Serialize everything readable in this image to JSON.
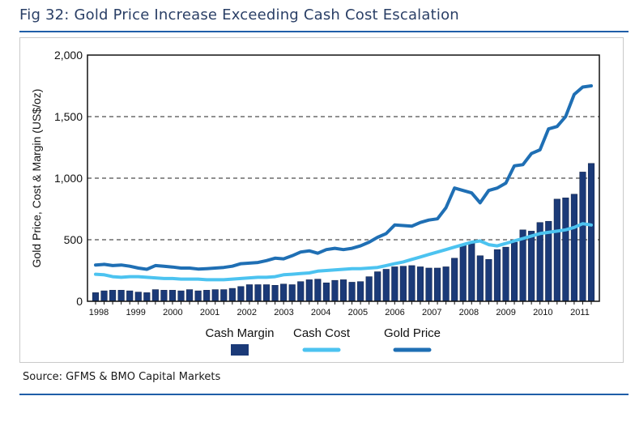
{
  "figure": {
    "title": "Fig 32: Gold Price Increase Exceeding Cash Cost Escalation",
    "source": "Source: GFMS & BMO Capital Markets"
  },
  "colors": {
    "cash_margin": "#1b3a78",
    "cash_cost": "#4cc3f0",
    "gold_price": "#1f6fb4",
    "rule": "#1f5ea8"
  },
  "chart_data": {
    "type": "bar",
    "ylabel": "Gold Price, Cost & Margin (US$/oz)",
    "ylim": [
      0,
      2000
    ],
    "yticks": [
      0,
      500,
      1000,
      1500,
      2000
    ],
    "ytick_labels": [
      "0",
      "500",
      "1,000",
      "1,500",
      "2,000"
    ],
    "grid": "dashed horizontal at 500, 1000, 1500",
    "xlabels": [
      "1998",
      "1999",
      "2000",
      "2001",
      "2002",
      "2003",
      "2004",
      "2005",
      "2006",
      "2007",
      "2008",
      "2009",
      "2010",
      "2011"
    ],
    "legend": [
      "Cash Margin",
      "Cash Cost",
      "Gold Price"
    ],
    "legend_position": "bottom",
    "series": [
      {
        "name": "Cash Margin",
        "kind": "bar",
        "values": [
          70,
          85,
          90,
          90,
          85,
          75,
          70,
          95,
          90,
          90,
          85,
          95,
          85,
          90,
          95,
          95,
          105,
          120,
          135,
          135,
          135,
          130,
          140,
          135,
          160,
          175,
          180,
          150,
          170,
          175,
          155,
          160,
          200,
          240,
          260,
          280,
          285,
          290,
          280,
          270,
          270,
          280,
          350,
          460,
          480,
          370,
          340,
          420,
          440,
          480,
          580,
          570,
          640,
          650,
          830,
          840,
          870,
          1050,
          1120
        ]
      },
      {
        "name": "Cash Cost",
        "kind": "line",
        "values": [
          220,
          215,
          200,
          195,
          200,
          200,
          195,
          190,
          185,
          185,
          180,
          180,
          180,
          175,
          175,
          175,
          180,
          185,
          190,
          195,
          195,
          200,
          215,
          220,
          225,
          230,
          245,
          250,
          255,
          260,
          265,
          265,
          270,
          275,
          290,
          305,
          320,
          340,
          360,
          380,
          400,
          420,
          440,
          460,
          480,
          490,
          460,
          450,
          470,
          490,
          510,
          530,
          550,
          560,
          570,
          580,
          600,
          630,
          620
        ]
      },
      {
        "name": "Gold Price",
        "kind": "line",
        "values": [
          295,
          300,
          290,
          295,
          285,
          270,
          260,
          290,
          285,
          278,
          270,
          270,
          262,
          265,
          270,
          275,
          285,
          305,
          310,
          315,
          330,
          350,
          345,
          370,
          400,
          410,
          390,
          420,
          430,
          420,
          430,
          450,
          480,
          520,
          550,
          620,
          615,
          610,
          640,
          660,
          670,
          760,
          920,
          900,
          880,
          800,
          900,
          920,
          960,
          1100,
          1110,
          1200,
          1230,
          1400,
          1420,
          1500,
          1680,
          1740,
          1750
        ]
      }
    ]
  }
}
